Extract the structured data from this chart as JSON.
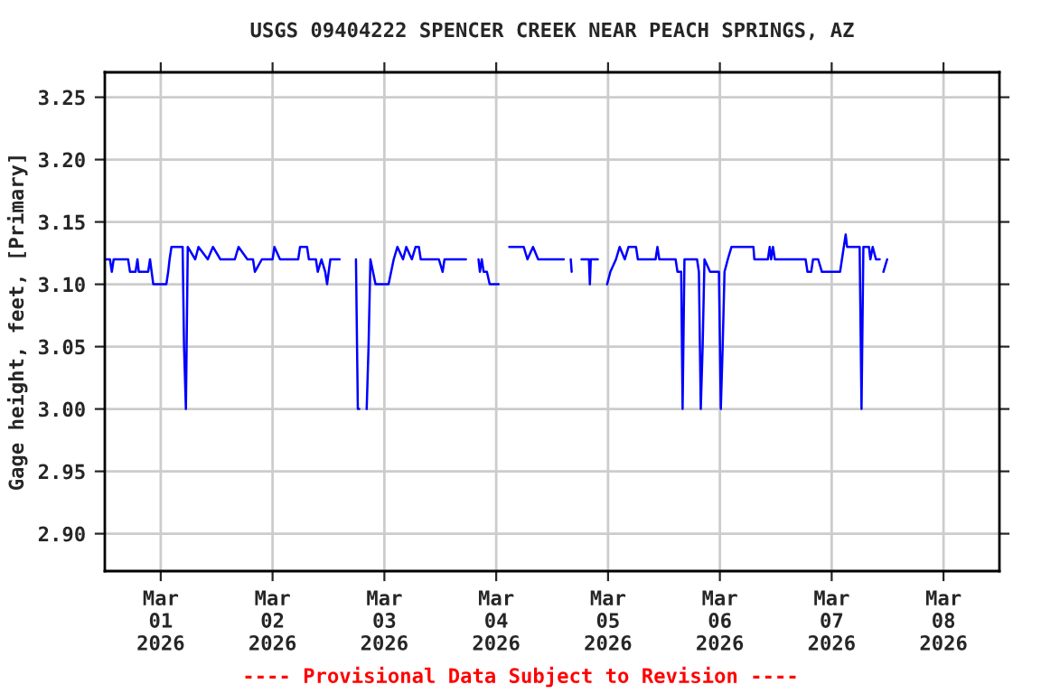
{
  "chart_data": {
    "type": "line",
    "title": "USGS 09404222 SPENCER CREEK NEAR PEACH SPRINGS, AZ",
    "ylabel": "Gage height, feet, [Primary]",
    "annotations": [
      "---- Provisional Data Subject to Revision ----"
    ],
    "xlim": [
      "2026-02-28T12:00",
      "2026-03-08T12:00"
    ],
    "xticks": [
      {
        "value": "2026-03-01",
        "label": "Mar\n01\n2026"
      },
      {
        "value": "2026-03-02",
        "label": "Mar\n02\n2026"
      },
      {
        "value": "2026-03-03",
        "label": "Mar\n03\n2026"
      },
      {
        "value": "2026-03-04",
        "label": "Mar\n04\n2026"
      },
      {
        "value": "2026-03-05",
        "label": "Mar\n05\n2026"
      },
      {
        "value": "2026-03-06",
        "label": "Mar\n06\n2026"
      },
      {
        "value": "2026-03-07",
        "label": "Mar\n07\n2026"
      },
      {
        "value": "2026-03-08",
        "label": "Mar\n08\n2026"
      }
    ],
    "ylim": [
      2.87,
      3.27
    ],
    "yticks": [
      {
        "value": 2.9,
        "label": "2.90"
      },
      {
        "value": 2.95,
        "label": "2.95"
      },
      {
        "value": 3.0,
        "label": "3.00"
      },
      {
        "value": 3.05,
        "label": "3.05"
      },
      {
        "value": 3.1,
        "label": "3.10"
      },
      {
        "value": 3.15,
        "label": "3.15"
      },
      {
        "value": 3.2,
        "label": "3.20"
      },
      {
        "value": 3.25,
        "label": "3.25"
      }
    ],
    "grid": true,
    "legend": false,
    "marker": "none",
    "line_style": "solid",
    "series": [
      {
        "color": "#0000ff",
        "x": [
          "2026-02-28T12:00",
          "2026-02-28T13:06",
          "2026-02-28T13:30",
          "2026-02-28T13:54",
          "2026-02-28T17:00",
          "2026-02-28T17:24",
          "2026-02-28T18:36",
          "2026-02-28T19:00",
          "2026-02-28T19:18",
          "2026-02-28T21:18",
          "2026-02-28T21:42",
          "2026-02-28T22:24",
          "2026-03-01T01:12",
          "2026-03-01T01:36",
          "2026-03-01T01:54",
          "2026-03-01T02:18",
          "2026-03-01T04:42",
          "2026-03-01T05:00",
          "2026-03-01T05:24",
          "2026-03-01T05:48",
          "2026-03-01T07:24",
          "2026-03-01T08:06",
          "2026-03-01T10:06",
          "2026-03-01T11:12",
          "2026-03-01T12:48",
          "2026-03-01T15:54",
          "2026-03-01T16:42",
          "2026-03-01T18:36",
          "2026-03-01T19:48",
          "2026-03-01T20:12",
          "2026-03-01T21:42",
          "2026-03-02T00:00",
          "2026-03-02T00:24",
          "2026-03-02T01:36",
          "2026-03-02T05:30",
          "2026-03-02T05:54",
          "2026-03-02T07:24",
          "2026-03-02T07:48",
          "2026-03-02T09:18",
          "2026-03-02T09:42",
          "2026-03-02T10:30",
          "2026-03-02T11:18",
          "2026-03-02T11:42",
          "2026-03-02T12:24",
          "2026-03-02T14:24",
          "2026-03-02T16:00",
          "2026-03-02T17:54",
          "2026-03-02T18:18",
          "2026-03-02T18:36",
          "2026-03-02T19:24",
          "2026-03-02T20:12",
          "2026-03-02T20:36",
          "2026-03-02T21:00",
          "2026-03-02T22:06",
          "2026-03-03T00:54",
          "2026-03-03T02:00",
          "2026-03-03T02:48",
          "2026-03-03T04:00",
          "2026-03-03T04:42",
          "2026-03-03T05:54",
          "2026-03-03T06:42",
          "2026-03-03T07:24",
          "2026-03-03T07:48",
          "2026-03-03T11:42",
          "2026-03-03T12:30",
          "2026-03-03T12:54",
          "2026-03-03T17:30",
          "2026-03-03T18:30",
          "2026-03-03T20:12",
          "2026-03-03T20:30",
          "2026-03-03T20:54",
          "2026-03-03T21:18",
          "2026-03-03T22:00",
          "2026-03-03T22:36",
          "2026-03-04T00:30",
          "2026-03-04T01:30",
          "2026-03-04T02:48",
          "2026-03-04T05:54",
          "2026-03-04T06:42",
          "2026-03-04T07:54",
          "2026-03-04T09:00",
          "2026-03-04T14:30",
          "2026-03-04T15:12",
          "2026-03-04T16:00",
          "2026-03-04T16:12",
          "2026-03-04T17:00",
          "2026-03-04T18:18",
          "2026-03-04T19:54",
          "2026-03-04T20:06",
          "2026-03-04T20:18",
          "2026-03-04T21:48",
          "2026-03-04T22:48",
          "2026-03-04T23:48",
          "2026-03-05T00:30",
          "2026-03-05T01:42",
          "2026-03-05T02:30",
          "2026-03-05T03:36",
          "2026-03-05T04:24",
          "2026-03-05T06:00",
          "2026-03-05T06:24",
          "2026-03-05T10:12",
          "2026-03-05T10:36",
          "2026-03-05T11:00",
          "2026-03-05T14:30",
          "2026-03-05T14:54",
          "2026-03-05T15:42",
          "2026-03-05T16:00",
          "2026-03-05T16:24",
          "2026-03-05T19:06",
          "2026-03-05T19:30",
          "2026-03-05T19:54",
          "2026-03-05T20:18",
          "2026-03-05T20:42",
          "2026-03-05T21:54",
          "2026-03-05T23:48",
          "2026-03-06T00:12",
          "2026-03-06T00:36",
          "2026-03-06T01:00",
          "2026-03-06T01:42",
          "2026-03-06T02:30",
          "2026-03-06T07:12",
          "2026-03-06T07:24",
          "2026-03-06T10:18",
          "2026-03-06T10:42",
          "2026-03-06T11:00",
          "2026-03-06T11:24",
          "2026-03-06T11:48",
          "2026-03-06T18:24",
          "2026-03-06T18:48",
          "2026-03-06T19:36",
          "2026-03-06T20:00",
          "2026-03-06T21:06",
          "2026-03-06T21:54",
          "2026-03-07T01:48",
          "2026-03-07T02:12",
          "2026-03-07T02:36",
          "2026-03-07T03:00",
          "2026-03-07T03:18",
          "2026-03-07T06:00",
          "2026-03-07T06:24",
          "2026-03-07T06:48",
          "2026-03-07T08:00",
          "2026-03-07T08:18",
          "2026-03-07T08:48",
          "2026-03-07T09:30",
          "2026-03-07T10:18",
          "2026-03-07T10:42",
          "2026-03-07T11:06",
          "2026-03-07T11:54"
        ],
        "values": [
          3.12,
          3.12,
          3.11,
          3.12,
          3.12,
          3.11,
          3.11,
          3.12,
          3.11,
          3.11,
          3.12,
          3.1,
          3.1,
          3.11,
          3.12,
          3.13,
          3.13,
          3.05,
          3.0,
          3.13,
          3.12,
          3.13,
          3.12,
          3.13,
          3.12,
          3.12,
          3.13,
          3.12,
          3.12,
          3.11,
          3.12,
          3.12,
          3.13,
          3.12,
          3.12,
          3.13,
          3.13,
          3.12,
          3.12,
          3.11,
          3.12,
          3.11,
          3.1,
          3.12,
          3.12,
          null,
          3.12,
          3.0,
          3.0,
          null,
          3.0,
          3.05,
          3.12,
          3.1,
          3.1,
          3.12,
          3.13,
          3.12,
          3.13,
          3.12,
          3.13,
          3.13,
          3.12,
          3.12,
          3.11,
          3.12,
          3.12,
          null,
          3.12,
          3.11,
          3.12,
          3.11,
          3.11,
          3.1,
          3.1,
          null,
          3.13,
          3.13,
          3.12,
          3.13,
          3.12,
          3.12,
          null,
          3.12,
          3.11,
          null,
          3.12,
          3.12,
          3.1,
          3.12,
          3.12,
          null,
          3.1,
          3.11,
          3.12,
          3.13,
          3.12,
          3.13,
          3.13,
          3.12,
          3.12,
          3.13,
          3.12,
          3.12,
          3.11,
          3.11,
          3.0,
          3.12,
          3.12,
          3.11,
          3.0,
          3.05,
          3.12,
          3.11,
          3.11,
          3.0,
          3.05,
          3.11,
          3.12,
          3.13,
          3.13,
          3.12,
          3.12,
          3.13,
          3.12,
          3.13,
          3.12,
          3.12,
          3.11,
          3.11,
          3.12,
          3.12,
          3.11,
          3.11,
          3.12,
          3.13,
          3.14,
          3.13,
          3.13,
          3.0,
          3.13,
          3.13,
          3.12,
          3.13,
          3.12,
          3.12,
          null,
          3.11,
          3.12
        ]
      }
    ]
  }
}
